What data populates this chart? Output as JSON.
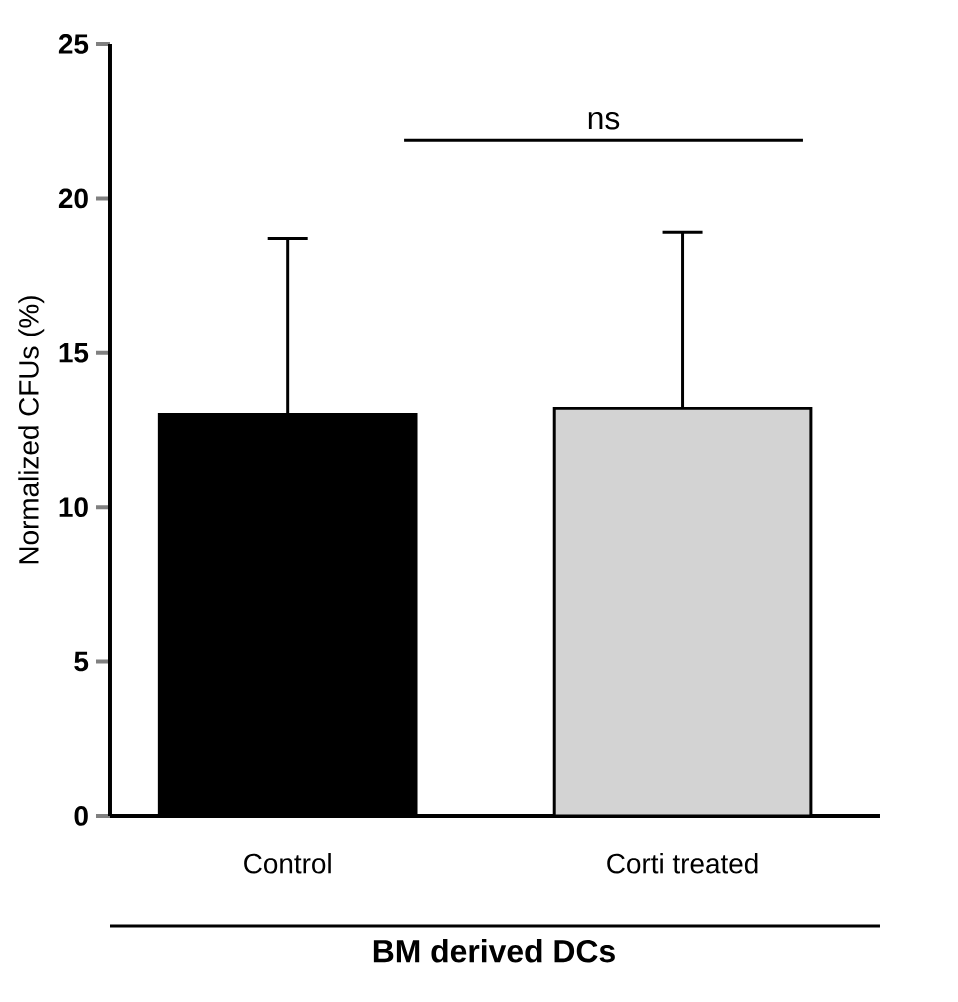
{
  "chart_data": {
    "type": "bar",
    "categories": [
      "Control",
      "Corti treated"
    ],
    "values": [
      13.0,
      13.2
    ],
    "colors": [
      "#000000",
      "#d3d3d3"
    ],
    "errors": [
      [
        13.0,
        18.7
      ],
      [
        13.2,
        18.9
      ]
    ],
    "ylim": [
      0,
      25
    ],
    "yticks": [
      0,
      5,
      10,
      15,
      20,
      25
    ],
    "ylabel": "Normalized CFUs (%)",
    "xlabel": "BM derived DCs",
    "annotations": [
      "ns"
    ]
  }
}
